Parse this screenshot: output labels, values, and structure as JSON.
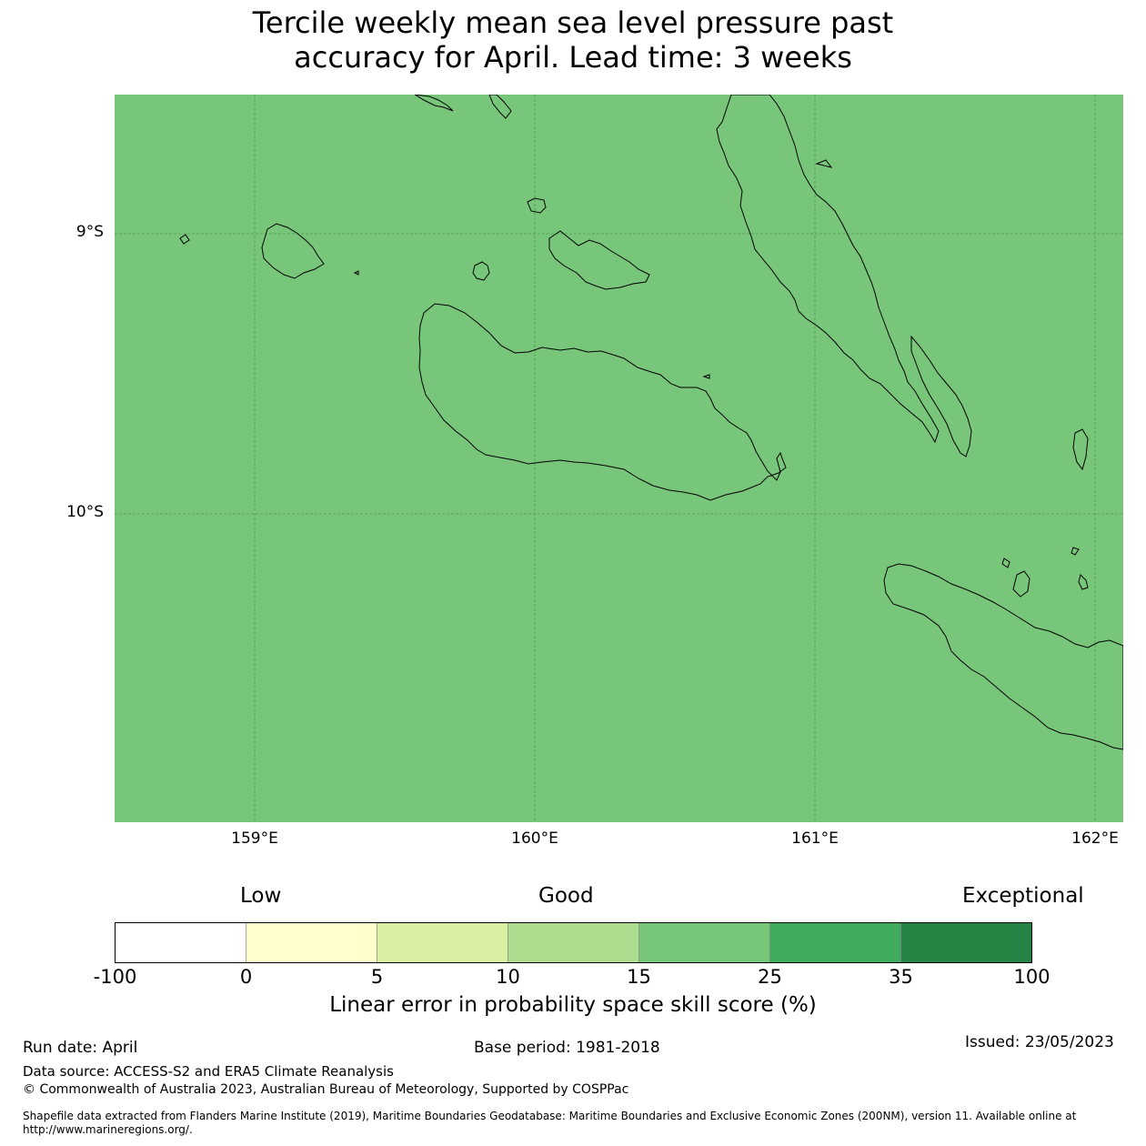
{
  "title": {
    "line1": "Tercile weekly mean sea level pressure past",
    "line2": "accuracy for April. Lead time: 3 weeks"
  },
  "map": {
    "background_color": "#78c679",
    "lat_labels": [
      "9°S",
      "10°S"
    ],
    "lon_labels": [
      "159°E",
      "160°E",
      "161°E",
      "162°E"
    ]
  },
  "colorbar": {
    "category_labels": [
      "Low",
      "Good",
      "Exceptional"
    ],
    "tick_labels": [
      "-100",
      "0",
      "5",
      "10",
      "15",
      "25",
      "35",
      "100"
    ],
    "colors": [
      "#ffffff",
      "#ffffcc",
      "#d9f0a3",
      "#addd8e",
      "#78c679",
      "#41ab5d",
      "#238443"
    ],
    "title": "Linear error in probability space skill score (%)"
  },
  "footer": {
    "run_date": "Run date: April",
    "base_period": "Base period: 1981-2018",
    "issued": "Issued: 23/05/2023",
    "data_source": "Data source: ACCESS-S2 and ERA5 Climate Reanalysis",
    "copyright": "© Commonwealth of Australia 2023, Australian Bureau of Meteorology, Supported by COSPPac",
    "shapefile": "Shapefile data extracted from Flanders Marine Institute (2019), Maritime Boundaries Geodatabase: Maritime Boundaries and Exclusive Economic Zones (200NM), version 11. Available online at http://www.marineregions.org/."
  }
}
